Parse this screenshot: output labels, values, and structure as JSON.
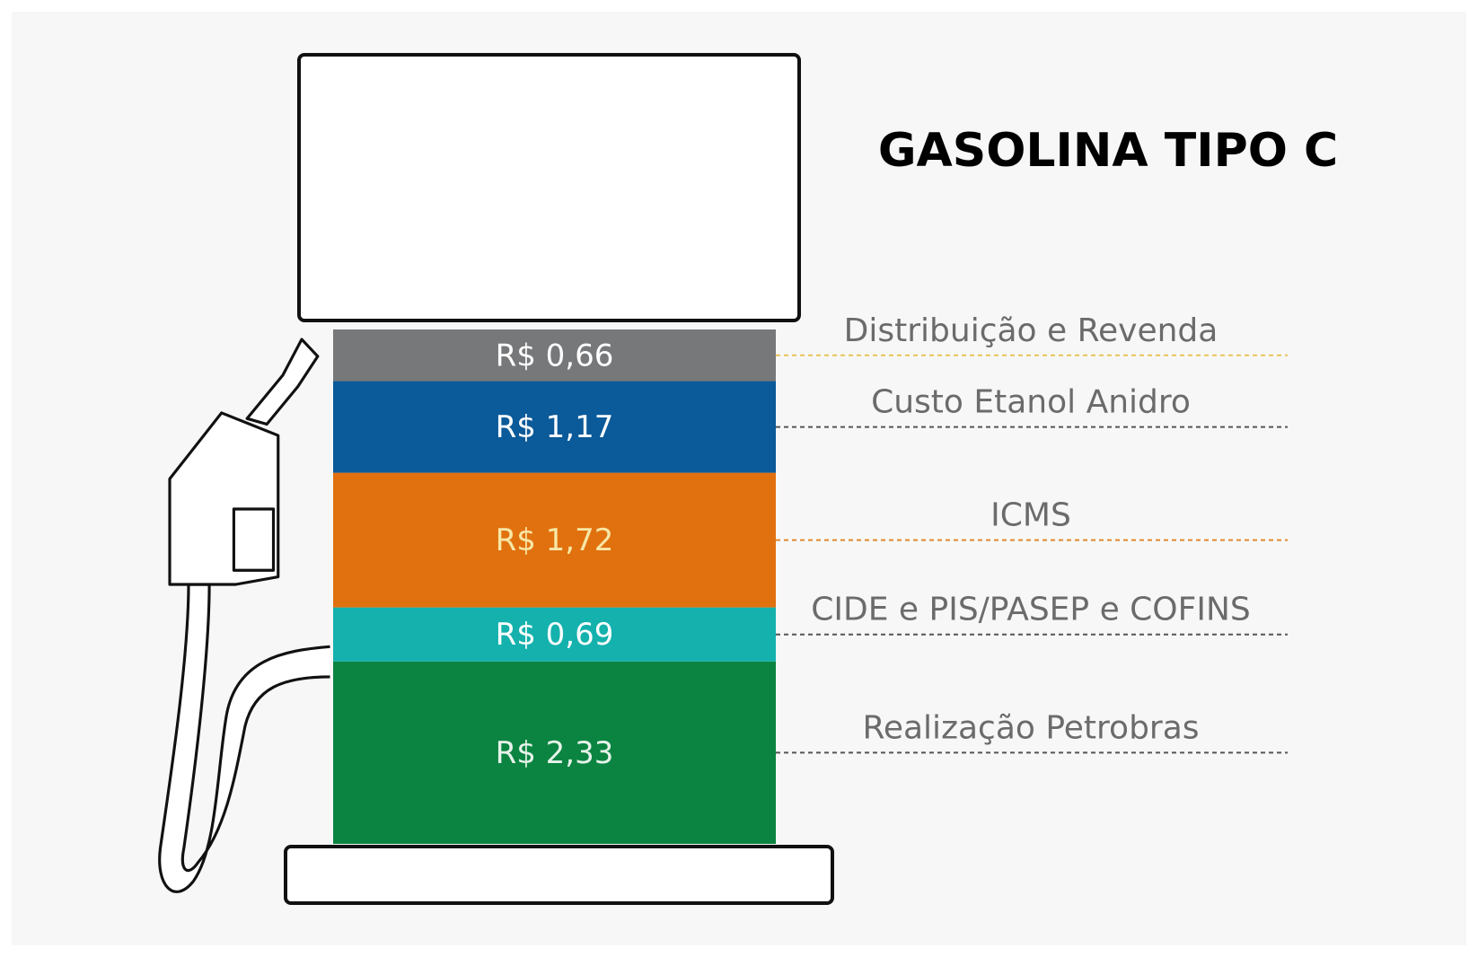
{
  "chart_data": {
    "type": "bar",
    "stacked": true,
    "title": "GASOLINA TIPO C",
    "categories": [
      null
    ],
    "series": [
      {
        "name": "Realização Petrobras",
        "color": "#0b8441",
        "label_color": "#e6f3ea",
        "leader_color": "#555555",
        "values": [
          2.33
        ],
        "value_labels": [
          "R$ 2,33"
        ]
      },
      {
        "name": "CIDE e PIS/PASEP e COFINS",
        "color": "#14b1ad",
        "label_color": "#ffffff",
        "leader_color": "#555555",
        "values": [
          0.69
        ],
        "value_labels": [
          "R$ 0,69"
        ]
      },
      {
        "name": "ICMS",
        "color": "#e1710f",
        "label_color": "#f7e7a6",
        "leader_color": "#e1892f",
        "values": [
          1.72
        ],
        "value_labels": [
          "R$ 1,72"
        ]
      },
      {
        "name": "Custo Etanol Anidro",
        "color": "#0b5a99",
        "label_color": "#ffffff",
        "leader_color": "#555555",
        "values": [
          1.17
        ],
        "value_labels": [
          "R$ 1,17"
        ]
      },
      {
        "name": "Distribuição e Revenda",
        "color": "#77787a",
        "label_color": "#ffffff",
        "leader_color": "#e8c35a",
        "values": [
          0.66
        ],
        "value_labels": [
          "R$ 0,66"
        ]
      }
    ]
  }
}
